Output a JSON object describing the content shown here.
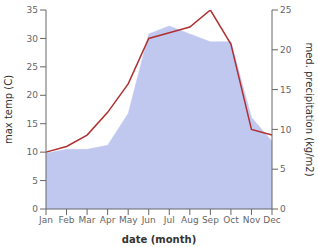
{
  "chart_data": {
    "type": "line",
    "xlabel": "date (month)",
    "ylabel": "max temp (C)",
    "y2label": "med. precipitation (kg/m2)",
    "categories": [
      "Jan",
      "Feb",
      "Mar",
      "Apr",
      "May",
      "Jun",
      "Jul",
      "Aug",
      "Sep",
      "Oct",
      "Nov",
      "Dec"
    ],
    "series": [
      {
        "type": "area",
        "axis": "y2",
        "color": "#c0c8f0",
        "values": [
          7,
          7.5,
          7.5,
          8,
          12,
          22,
          23,
          22,
          21,
          21,
          11.5,
          8.5
        ]
      },
      {
        "type": "line",
        "color": "#b03030",
        "values": [
          10,
          11,
          13,
          17,
          22,
          30,
          31,
          32,
          35,
          29,
          14,
          13
        ]
      }
    ],
    "ylim": [
      0,
      35
    ],
    "yticks": [
      0,
      5,
      10,
      15,
      20,
      25,
      30,
      35
    ],
    "y2lim": [
      0,
      25
    ],
    "y2ticks": [
      0,
      5,
      10,
      15,
      20,
      25
    ]
  }
}
